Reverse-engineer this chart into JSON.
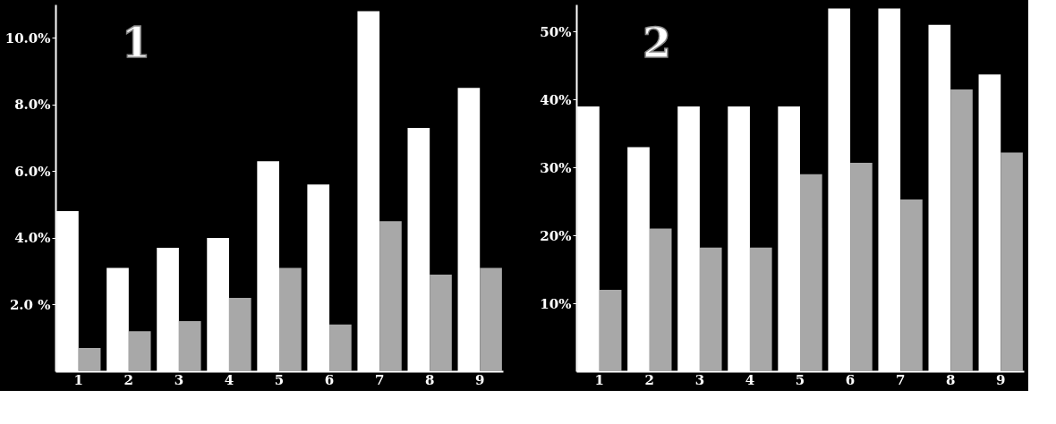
{
  "chart_data": [
    {
      "type": "bar",
      "title": "1",
      "categories": [
        "1",
        "2",
        "3",
        "4",
        "5",
        "6",
        "7",
        "8",
        "9"
      ],
      "series": [
        {
          "color": "#ffffff",
          "values": [
            4.8,
            3.1,
            3.7,
            4.0,
            6.3,
            5.6,
            10.8,
            7.3,
            8.5
          ]
        },
        {
          "color": "#a8a8a8",
          "values": [
            0.7,
            1.2,
            1.5,
            2.2,
            3.1,
            1.4,
            4.5,
            2.9,
            3.1
          ]
        }
      ],
      "ylim": [
        0,
        11
      ],
      "yticks": [
        {
          "value": 2,
          "label": "2.0 %"
        },
        {
          "value": 4,
          "label": "4.0%"
        },
        {
          "value": 6,
          "label": "6.0%"
        },
        {
          "value": 8,
          "label": "8.0%"
        },
        {
          "value": 10,
          "label": "10.0%"
        }
      ],
      "grid": false,
      "legend": false
    },
    {
      "type": "bar",
      "title": "2",
      "categories": [
        "1",
        "2",
        "3",
        "4",
        "5",
        "6",
        "7",
        "8",
        "9"
      ],
      "series": [
        {
          "color": "#ffffff",
          "values": [
            39,
            33,
            39,
            39,
            39,
            53.4,
            53.4,
            51,
            43.7
          ]
        },
        {
          "color": "#a8a8a8",
          "values": [
            12,
            21,
            18.2,
            18.2,
            29,
            30.7,
            25.3,
            41.5,
            32.2
          ]
        }
      ],
      "ylim": [
        0,
        54
      ],
      "yticks": [
        {
          "value": 10,
          "label": "10%"
        },
        {
          "value": 20,
          "label": "20%"
        },
        {
          "value": 30,
          "label": "30%"
        },
        {
          "value": 40,
          "label": "40%"
        },
        {
          "value": 50,
          "label": "50%"
        }
      ],
      "grid": false,
      "legend": false
    }
  ]
}
